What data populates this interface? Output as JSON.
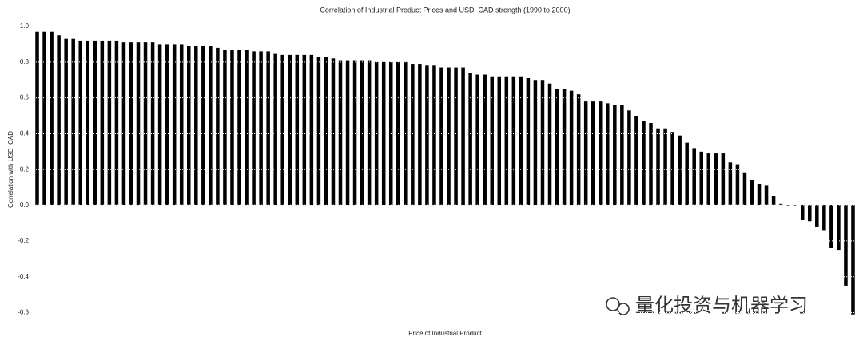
{
  "chart_data": {
    "type": "bar",
    "title": "Correlation of Industrial Product Prices and USD_CAD strength (1990 to 2000)",
    "xlabel": "Price of Industrial Product",
    "ylabel": "Correlation with USD_CAD",
    "annotation": "量化投资与机器学习",
    "categories": [
      null,
      null,
      null,
      null,
      null,
      null,
      null,
      null,
      null,
      null,
      null,
      null,
      null,
      null,
      null,
      null,
      null,
      null,
      null,
      null,
      null,
      null,
      null,
      null,
      null,
      null,
      null,
      null,
      null,
      null,
      null,
      null,
      null,
      null,
      null,
      null,
      null,
      null,
      null,
      null,
      null,
      null,
      null,
      null,
      null,
      null,
      null,
      null,
      null,
      null,
      null,
      null,
      null,
      null,
      null,
      null,
      null,
      null,
      null,
      null,
      null,
      null,
      null,
      null,
      null,
      null,
      null,
      null,
      null,
      null,
      null,
      null,
      null,
      null,
      null,
      null,
      null,
      null,
      null,
      null,
      null,
      null,
      null,
      null,
      null,
      null,
      null,
      null,
      null,
      null,
      null,
      null,
      null,
      null,
      null,
      null,
      null,
      null,
      null,
      null,
      null,
      null,
      null,
      null,
      null,
      null,
      null,
      null,
      null,
      null,
      null,
      null,
      null,
      null
    ],
    "values": [
      0.97,
      0.97,
      0.97,
      0.95,
      0.93,
      0.93,
      0.92,
      0.92,
      0.92,
      0.92,
      0.92,
      0.92,
      0.91,
      0.91,
      0.91,
      0.91,
      0.91,
      0.9,
      0.9,
      0.9,
      0.9,
      0.89,
      0.89,
      0.89,
      0.89,
      0.88,
      0.87,
      0.87,
      0.87,
      0.87,
      0.86,
      0.86,
      0.86,
      0.85,
      0.84,
      0.84,
      0.84,
      0.84,
      0.84,
      0.83,
      0.83,
      0.82,
      0.81,
      0.81,
      0.81,
      0.81,
      0.81,
      0.8,
      0.8,
      0.8,
      0.8,
      0.8,
      0.79,
      0.79,
      0.78,
      0.78,
      0.77,
      0.77,
      0.77,
      0.77,
      0.74,
      0.73,
      0.73,
      0.72,
      0.72,
      0.72,
      0.72,
      0.72,
      0.71,
      0.7,
      0.7,
      0.68,
      0.65,
      0.65,
      0.64,
      0.62,
      0.58,
      0.58,
      0.58,
      0.57,
      0.56,
      0.56,
      0.53,
      0.5,
      0.47,
      0.46,
      0.43,
      0.43,
      0.41,
      0.39,
      0.35,
      0.32,
      0.3,
      0.29,
      0.29,
      0.29,
      0.24,
      0.23,
      0.18,
      0.14,
      0.12,
      0.11,
      0.05,
      0.01,
      0.0,
      0.0,
      -0.08,
      -0.09,
      -0.12,
      -0.14,
      -0.24,
      -0.25,
      -0.45,
      -0.61
    ],
    "color": "#000000",
    "ylim": [
      -0.62,
      1.0
    ],
    "yticks": [
      -0.6,
      -0.4,
      -0.2,
      {
        "value": 0.0,
        "label": "0.0"
      },
      0.2,
      0.4,
      0.6,
      0.8,
      {
        "value": 1.0,
        "label": "1.0"
      }
    ],
    "grid": true
  }
}
